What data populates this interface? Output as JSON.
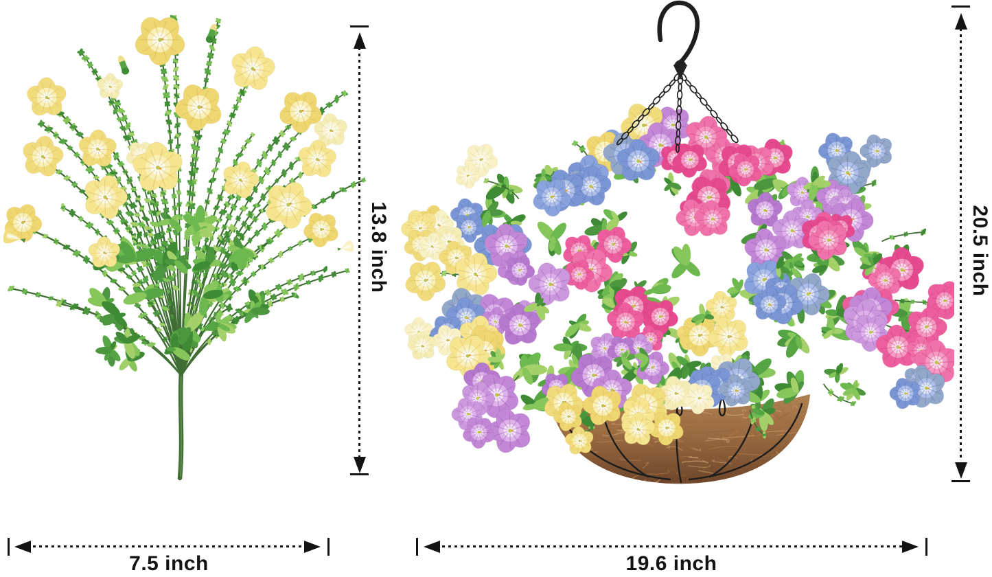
{
  "image_type": "product dimension illustration",
  "background_color": "#ffffff",
  "dimension_color": "#141414",
  "items": {
    "bouquet": {
      "name": "artificial yellow petunia flower bush",
      "height_label": "13.8 inch",
      "width_label": "7.5 inch"
    },
    "basket": {
      "name": "artificial mixed petunia hanging basket with coco liner and chain",
      "height_label": "20.5 inch",
      "width_label": "19.6 inch"
    }
  },
  "palette": {
    "flower_classes": {
      "yellow": {
        "edge": [
          "#f1dc7d",
          "#f5e591",
          "#eed671"
        ],
        "mid": "#f8efb9",
        "center": "#fdfbef",
        "vein": "#d9b955"
      },
      "pale": {
        "edge": [
          "#f5edb6",
          "#f8f1c6"
        ],
        "mid": "#faf5d8",
        "center": "#fffdf4",
        "vein": "#ddcf8e"
      },
      "pink": {
        "edge": [
          "#ec5e9d",
          "#f072aa",
          "#e54a8e"
        ],
        "mid": "#f39bc2",
        "center": "#f9d8e7",
        "vein": "#cf3f7f"
      },
      "lavender": {
        "edge": [
          "#c288d6",
          "#cb97dd",
          "#b579cd"
        ],
        "mid": "#ddb3ea",
        "center": "#f2e2f8",
        "vein": "#9f5cb8"
      },
      "blue": {
        "edge": [
          "#7b96d4",
          "#8aa3dc",
          "#93a7c9"
        ],
        "mid": "#aebfe8",
        "center": "#e0e7f7",
        "vein": "#5a74b4"
      }
    },
    "greens": [
      "#3e8a35",
      "#55a544",
      "#6db94f",
      "#86c65a",
      "#4c9640",
      "#a4d06a"
    ],
    "stem": "#3f6d33",
    "coco": {
      "top": "#b48555",
      "mid": "#9a6b41",
      "bottom": "#6e452a",
      "strands": [
        "#c99a66",
        "#8a5a34",
        "#a06c3e",
        "#d8b07e",
        "#b07a4a"
      ]
    },
    "wire": "#1d1d1d",
    "chain": "#222222",
    "hook": "#1f1f1f",
    "throat": "#b9c653",
    "stamen": "#e09b3a"
  }
}
